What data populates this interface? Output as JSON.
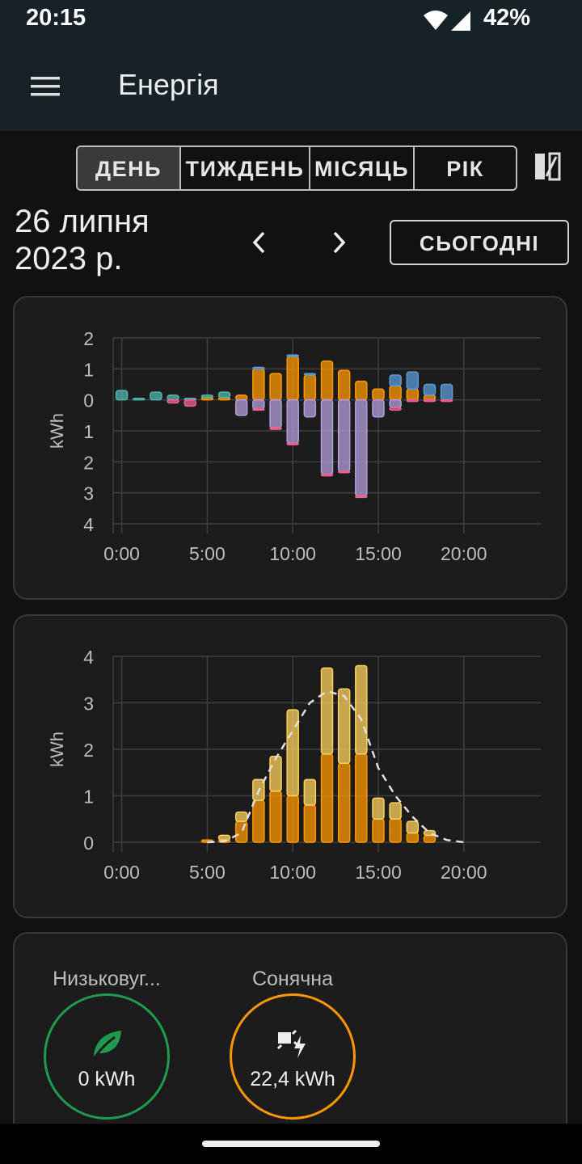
{
  "status_bar": {
    "time": "20:15",
    "battery": "42%"
  },
  "header": {
    "title": "Енергія"
  },
  "period_tabs": [
    "ДЕНЬ",
    "ТИЖДЕНЬ",
    "МІСЯЦЬ",
    "РІК"
  ],
  "selected_tab": 0,
  "date": [
    "26 липня",
    "2023 р."
  ],
  "today_button": "СЬОГОДНІ",
  "chart_data": [
    {
      "type": "bar",
      "stacked": true,
      "ylabel": "kWh",
      "grid": true,
      "x": [
        0,
        1,
        2,
        3,
        4,
        5,
        6,
        7,
        8,
        9,
        10,
        11,
        12,
        13,
        14,
        15,
        16,
        17,
        18,
        19,
        20,
        21,
        22,
        23
      ],
      "xlim": [
        -0.5,
        24.5
      ],
      "xticks": [
        {
          "value": 0,
          "label": "0:00"
        },
        {
          "value": 5,
          "label": "5:00"
        },
        {
          "value": 10,
          "label": "10:00"
        },
        {
          "value": 15,
          "label": "15:00"
        },
        {
          "value": 20,
          "label": "20:00"
        }
      ],
      "ylim": [
        -4,
        2
      ],
      "yticks": [
        2,
        1,
        0,
        {
          "value": -1,
          "label": "1"
        },
        {
          "value": -2,
          "label": "2"
        },
        {
          "value": -3,
          "label": "3"
        },
        {
          "value": -4,
          "label": "4"
        }
      ],
      "series": [
        {
          "color": "#ff9800",
          "values": [
            null,
            null,
            null,
            null,
            null,
            0.08,
            0.08,
            0.15,
            1.0,
            0.85,
            1.4,
            0.8,
            1.25,
            0.95,
            0.6,
            0.35,
            0.45,
            0.35,
            0.15,
            null,
            null,
            null,
            null,
            null
          ]
        },
        {
          "color": "#4db6ac",
          "values": [
            0.3,
            0.05,
            0.25,
            0.15,
            0.05,
            0.07,
            0.17,
            null,
            null,
            null,
            null,
            null,
            null,
            null,
            null,
            null,
            null,
            null,
            null,
            null,
            null,
            null,
            null,
            null
          ]
        },
        {
          "color": "#5b9bd5",
          "values": [
            null,
            null,
            null,
            null,
            null,
            null,
            null,
            null,
            0.05,
            null,
            0.05,
            0.05,
            null,
            null,
            null,
            null,
            0.35,
            0.55,
            0.35,
            0.5,
            null,
            null,
            null,
            null
          ]
        },
        {
          "color": "#b39ddb",
          "values": [
            null,
            null,
            null,
            null,
            null,
            null,
            null,
            -0.5,
            -0.3,
            -0.9,
            -1.4,
            -0.55,
            -2.4,
            -2.3,
            -3.1,
            -0.55,
            -0.25,
            null,
            null,
            null,
            null,
            null,
            null,
            null
          ]
        },
        {
          "color": "#f06292",
          "values": [
            null,
            null,
            null,
            -0.1,
            -0.2,
            null,
            null,
            null,
            -0.03,
            -0.05,
            -0.05,
            null,
            -0.05,
            -0.05,
            -0.05,
            null,
            -0.08,
            -0.05,
            -0.05,
            -0.05,
            null,
            null,
            null,
            null
          ]
        }
      ]
    },
    {
      "type": "bar",
      "stacked": true,
      "ylabel": "kWh",
      "grid": true,
      "x": [
        0,
        1,
        2,
        3,
        4,
        5,
        6,
        7,
        8,
        9,
        10,
        11,
        12,
        13,
        14,
        15,
        16,
        17,
        18,
        19,
        20,
        21,
        22,
        23
      ],
      "xlim": [
        -0.5,
        24.5
      ],
      "xticks": [
        {
          "value": 0,
          "label": "0:00"
        },
        {
          "value": 5,
          "label": "5:00"
        },
        {
          "value": 10,
          "label": "10:00"
        },
        {
          "value": 15,
          "label": "15:00"
        },
        {
          "value": 20,
          "label": "20:00"
        }
      ],
      "ylim": [
        0,
        4
      ],
      "yticks": [
        4,
        3,
        2,
        1,
        0
      ],
      "series": [
        {
          "color": "#ff9800",
          "values": [
            null,
            null,
            null,
            null,
            null,
            0.05,
            0.05,
            0.45,
            0.9,
            1.1,
            1.0,
            0.8,
            1.9,
            1.7,
            1.9,
            0.5,
            0.5,
            0.2,
            0.15,
            null,
            null,
            null,
            null,
            null
          ]
        },
        {
          "color": "#fdd15c",
          "values": [
            null,
            null,
            null,
            null,
            null,
            null,
            0.1,
            0.2,
            0.45,
            0.75,
            1.85,
            0.55,
            1.85,
            1.6,
            1.9,
            0.45,
            0.35,
            0.25,
            0.1,
            null,
            null,
            null,
            null,
            null
          ]
        }
      ],
      "lines": [
        {
          "color": "#e0e0e0",
          "dashed": true,
          "x": [
            5,
            6,
            7,
            8,
            9,
            10,
            11,
            12,
            13,
            14,
            15,
            16,
            17,
            18,
            19,
            20
          ],
          "values": [
            0,
            0.02,
            0.2,
            1.1,
            1.8,
            2.4,
            3.0,
            3.25,
            3.15,
            2.65,
            1.6,
            1.0,
            0.55,
            0.2,
            0.05,
            0
          ]
        }
      ]
    }
  ],
  "summary": [
    {
      "label": "Низьковуг...",
      "value": "0 kWh",
      "color": "#1e9b4f"
    },
    {
      "label": "Сонячна",
      "value": "22,4 kWh",
      "color": "#ff9800"
    }
  ]
}
